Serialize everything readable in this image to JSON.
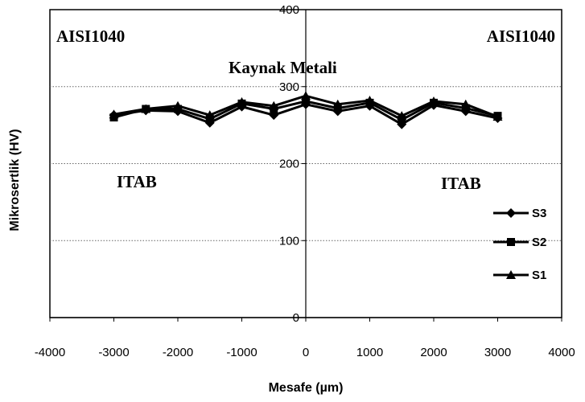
{
  "chart_data": {
    "type": "line",
    "xlabel": "Mesafe (µm)",
    "ylabel": "Mikrosertlik (HV)",
    "xlim": [
      -4000,
      4000
    ],
    "ylim": [
      0,
      400
    ],
    "x_ticks": [
      -4000,
      -3000,
      -2000,
      -1000,
      0,
      1000,
      2000,
      3000,
      4000
    ],
    "y_ticks": [
      0,
      100,
      200,
      300,
      400
    ],
    "grid": "horizontal dotted",
    "legend_position": "bottom-right",
    "annotations": {
      "left_base": "AISI1040",
      "right_base": "AISI1040",
      "weld": "Kaynak Metali",
      "left_haz": "ITAB",
      "right_haz": "ITAB"
    },
    "x": [
      -3000,
      -2500,
      -2000,
      -1500,
      -1000,
      -500,
      0,
      500,
      1000,
      1500,
      2000,
      2500,
      3000
    ],
    "series": [
      {
        "name": "S3",
        "marker": "diamond",
        "values": [
          263,
          269,
          268,
          253,
          274,
          263,
          277,
          268,
          275,
          251,
          276,
          268,
          259
        ]
      },
      {
        "name": "S2",
        "marker": "square",
        "values": [
          260,
          271,
          271,
          258,
          278,
          271,
          281,
          272,
          279,
          257,
          279,
          272,
          262
        ]
      },
      {
        "name": "S1",
        "marker": "triangle",
        "values": [
          264,
          271,
          275,
          263,
          280,
          275,
          288,
          277,
          282,
          262,
          281,
          277,
          261
        ]
      }
    ]
  }
}
